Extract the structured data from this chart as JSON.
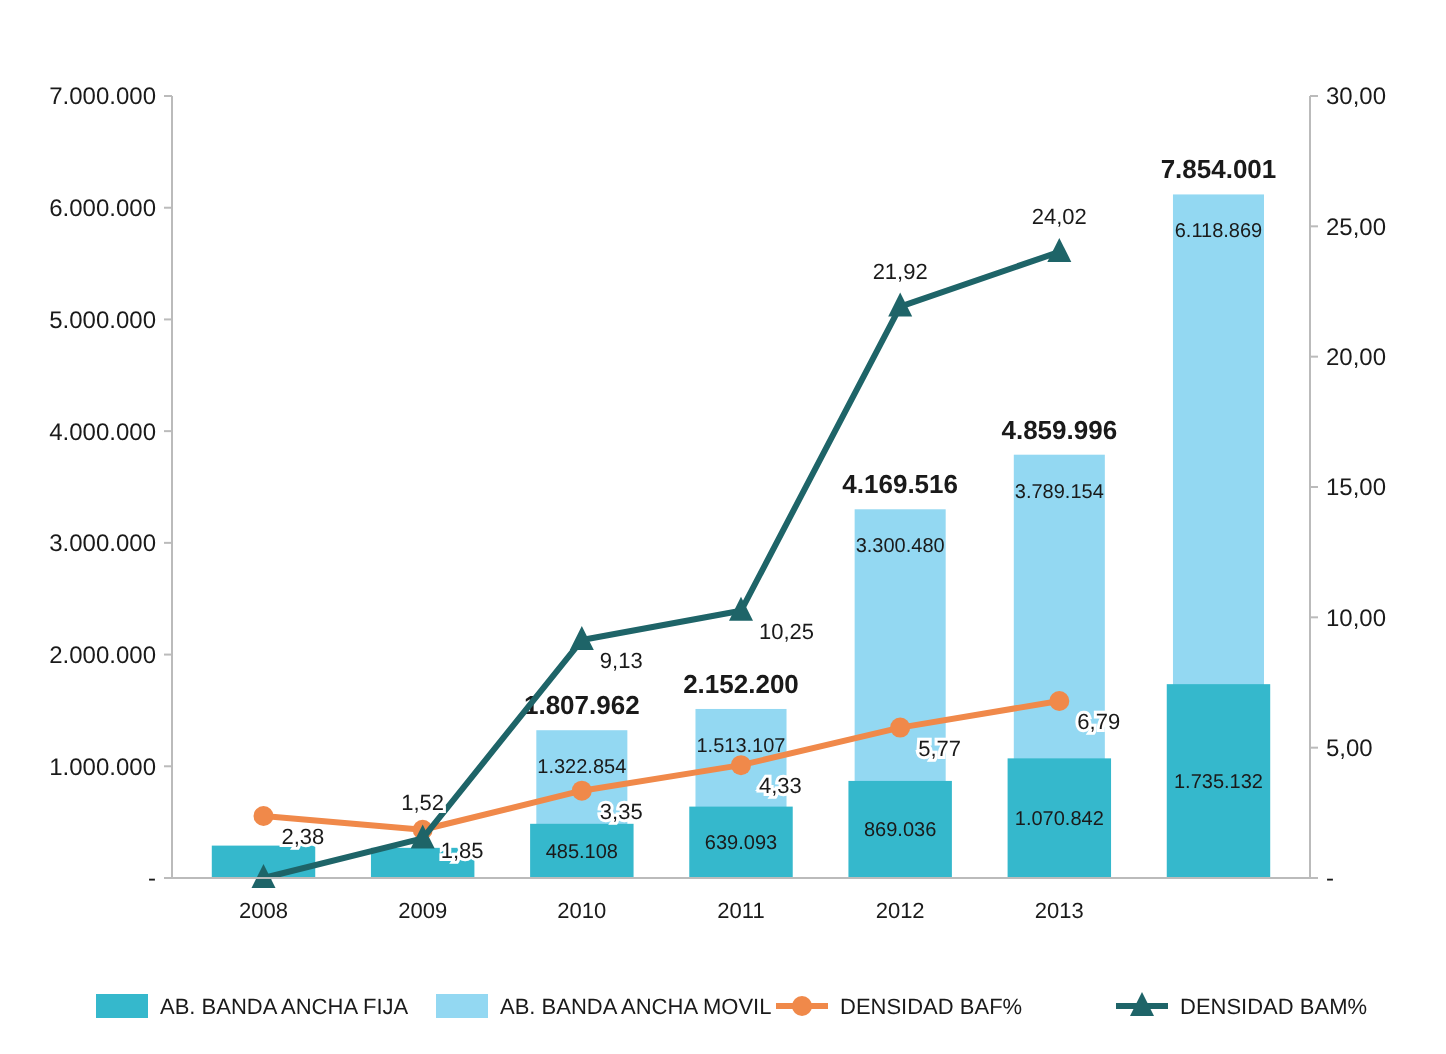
{
  "chart_data": {
    "type": "bar",
    "categories": [
      "2008",
      "2009",
      "2010",
      "2011",
      "2012",
      "2013",
      null
    ],
    "series": [
      {
        "name": "AB. BANDA ANCHA FIJA",
        "color": "#35b8cc",
        "values": [
          290000,
          270000,
          485108,
          639093,
          869036,
          1070842,
          1735132
        ],
        "value_labels": [
          null,
          null,
          "485.108",
          "639.093",
          "869.036",
          "1.070.842",
          "1.735.132"
        ]
      },
      {
        "name": "AB. BANDA ANCHA MOVIL",
        "color": "#93d8f2",
        "values": [
          null,
          null,
          1322854,
          1513107,
          3300480,
          3789154,
          6118869
        ],
        "value_labels": [
          null,
          null,
          "1.322.854",
          "1.513.107",
          "3.300.480",
          "3.789.154",
          "6.118.869"
        ]
      },
      {
        "name": "DENSIDAD BAF%",
        "type": "line",
        "axis": "y2",
        "marker": "circle",
        "color": "#f0894a",
        "values": [
          2.38,
          1.85,
          3.35,
          4.33,
          5.77,
          6.79,
          null
        ],
        "value_labels": [
          "2,38",
          "1,85",
          "3,35",
          "4,33",
          "5,77",
          "6,79",
          null
        ]
      },
      {
        "name": "DENSIDAD BAM%",
        "type": "line",
        "axis": "y2",
        "marker": "triangle",
        "color": "#1e6468",
        "values": [
          0,
          1.52,
          9.13,
          10.25,
          21.92,
          24.02,
          null
        ],
        "value_labels": [
          null,
          "1,52",
          "9,13",
          "10,25",
          "21,92",
          "24,02",
          null
        ]
      }
    ],
    "totals": [
      null,
      null,
      "1.807.962",
      "2.152.200",
      "4.169.516",
      "4.859.996",
      "7.854.001"
    ],
    "ylim": [
      0,
      7000000
    ],
    "yticks": [
      {
        "value": 0,
        "label": "-"
      },
      {
        "value": 1000000,
        "label": "1.000.000"
      },
      {
        "value": 2000000,
        "label": "2.000.000"
      },
      {
        "value": 3000000,
        "label": "3.000.000"
      },
      {
        "value": 4000000,
        "label": "4.000.000"
      },
      {
        "value": 5000000,
        "label": "5.000.000"
      },
      {
        "value": 6000000,
        "label": "6.000.000"
      },
      {
        "value": 7000000,
        "label": "7.000.000"
      }
    ],
    "y2lim": [
      0,
      30
    ],
    "y2ticks": [
      {
        "value": 0,
        "label": "-"
      },
      {
        "value": 5,
        "label": "5,00"
      },
      {
        "value": 10,
        "label": "10,00"
      },
      {
        "value": 15,
        "label": "15,00"
      },
      {
        "value": 20,
        "label": "20,00"
      },
      {
        "value": 25,
        "label": "25,00"
      },
      {
        "value": 30,
        "label": "30,00"
      }
    ],
    "legend": "bottom"
  }
}
